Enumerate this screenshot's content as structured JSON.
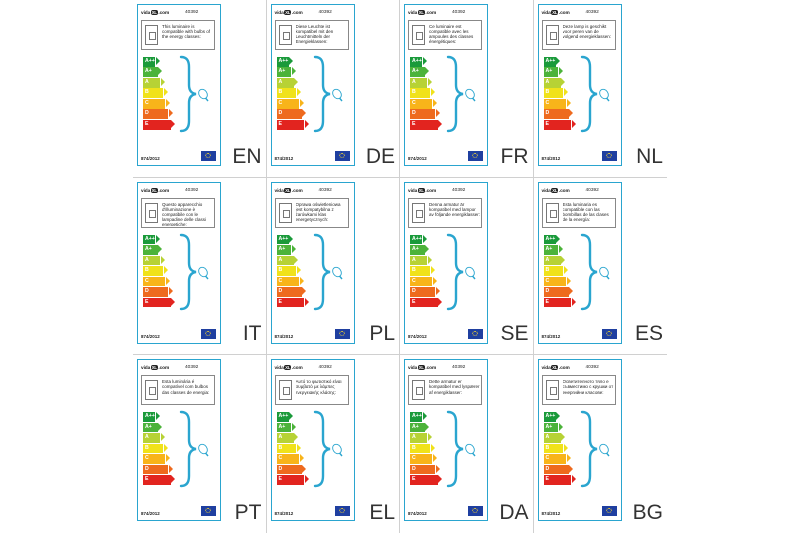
{
  "grid": {
    "common": {
      "logo_prefix": "vida",
      "logo_badge": "XL",
      "logo_suffix": ".com",
      "sku": "40392",
      "regulation": "874/2012",
      "classes": [
        "A++",
        "A+",
        "A",
        "B",
        "C",
        "D",
        "E"
      ],
      "class_colors": [
        "#1a9a3a",
        "#4cb33a",
        "#b7d235",
        "#f0e21a",
        "#f8b41a",
        "#ee6a1e",
        "#e2241f"
      ]
    },
    "labels": [
      {
        "lang": "EN",
        "text": "This luminaire is compatible with bulbs of the energy classes:"
      },
      {
        "lang": "DE",
        "text": "Diese Leuchte ist kompatibel mit den Leuchtmitteln der Energieklassen:"
      },
      {
        "lang": "FR",
        "text": "Ce luminaire est compatible avec les ampoules des classes énergétiques:"
      },
      {
        "lang": "NL",
        "text": "Deze lamp is geschikt voor peren van de volgend energieklassen:"
      },
      {
        "lang": "IT",
        "text": "Questo apparecchio d'illuminazione è compatibile con le lampadine delle classi energetiche:"
      },
      {
        "lang": "PL",
        "text": "Oprawa oświetleniowa jest kompatybilna z żarówkami klas energetycznych:"
      },
      {
        "lang": "SE",
        "text": "Denna armatur är kompatibel med lampor av följande energiklasser:"
      },
      {
        "lang": "ES",
        "text": "Esta luminaria es compatible con las bombillas de las clases de la energía:"
      },
      {
        "lang": "PT",
        "text": "Esta luminária é compatível com bulbos das classes de energia:"
      },
      {
        "lang": "EL",
        "text": "Αυτό το φωτιστικό είναι συμβατό με λάμπες ενεργειακής κλάσης:"
      },
      {
        "lang": "DA",
        "text": "Dette armatur er kompatibel med lyspærer af energiklasser:"
      },
      {
        "lang": "BG",
        "text": "Осветителното тяло е съвместимо с крушки от енергийни класове:"
      }
    ]
  }
}
